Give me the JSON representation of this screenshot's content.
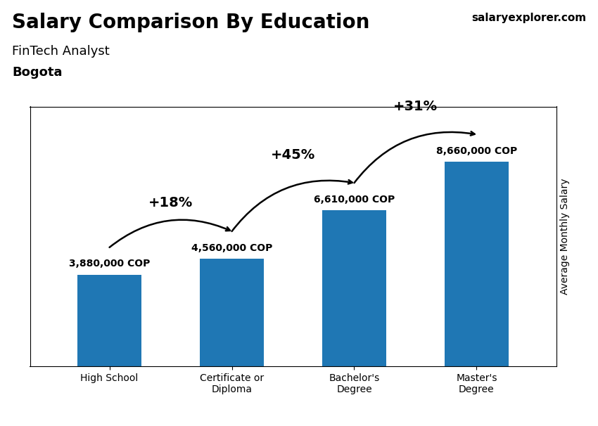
{
  "chart_data": {
    "type": "bar",
    "title": "Salary Comparison By Education",
    "subtitle": "FinTech Analyst",
    "annotations": [
      "Bogota",
      "salaryexplorer.com"
    ],
    "y_label": "Average Monthly Salary",
    "categories": [
      "High School",
      "Certificate or\nDiploma",
      "Bachelor's\nDegree",
      "Master's\nDegree"
    ],
    "values": [
      3880000,
      4560000,
      6610000,
      8660000
    ],
    "value_labels": [
      "3,880,000 COP",
      "4,560,000 COP",
      "6,610,000 COP",
      "8,660,000 COP"
    ],
    "data_labels": true,
    "changes": [
      {
        "value": 18,
        "label": "+18%"
      },
      {
        "value": 45,
        "label": "+45%"
      },
      {
        "value": 31,
        "label": "+31%"
      }
    ],
    "ylim": [
      0,
      11000000
    ],
    "tick_labels": "x",
    "grid": false
  }
}
